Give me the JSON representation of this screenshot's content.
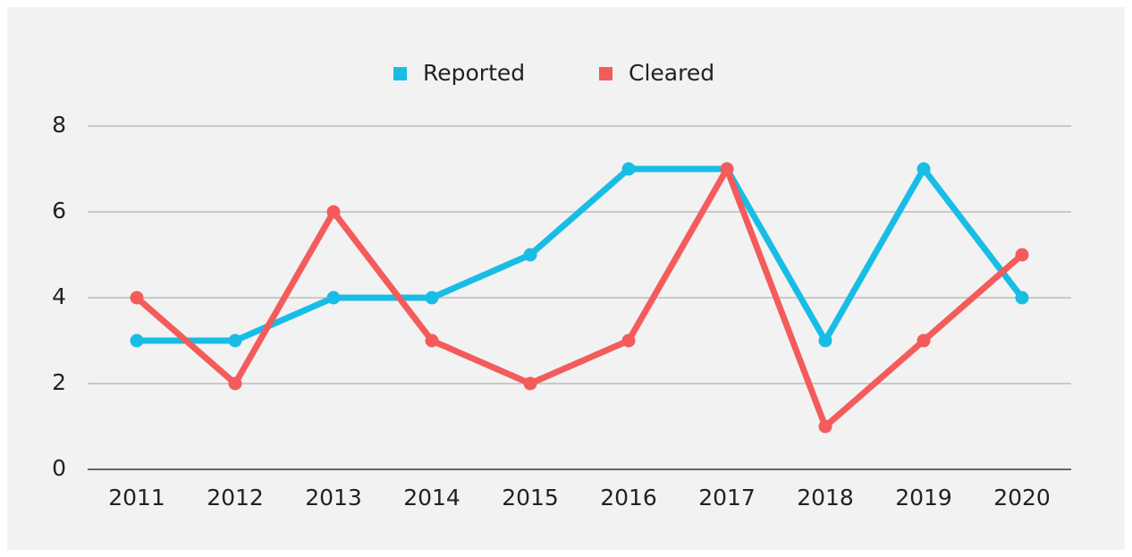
{
  "chart_data": {
    "type": "line",
    "categories": [
      "2011",
      "2012",
      "2013",
      "2014",
      "2015",
      "2016",
      "2017",
      "2018",
      "2019",
      "2020"
    ],
    "series": [
      {
        "name": "Reported",
        "color": "#18bde6",
        "values": [
          3,
          3,
          4,
          4,
          5,
          7,
          7,
          3,
          7,
          4
        ]
      },
      {
        "name": "Cleared",
        "color": "#f45b5b",
        "values": [
          4,
          2,
          6,
          3,
          2,
          3,
          7,
          1,
          3,
          5
        ]
      }
    ],
    "ylim": [
      0,
      8
    ],
    "yticks": [
      0,
      2,
      4,
      6,
      8
    ],
    "grid": true,
    "legend": "top"
  }
}
